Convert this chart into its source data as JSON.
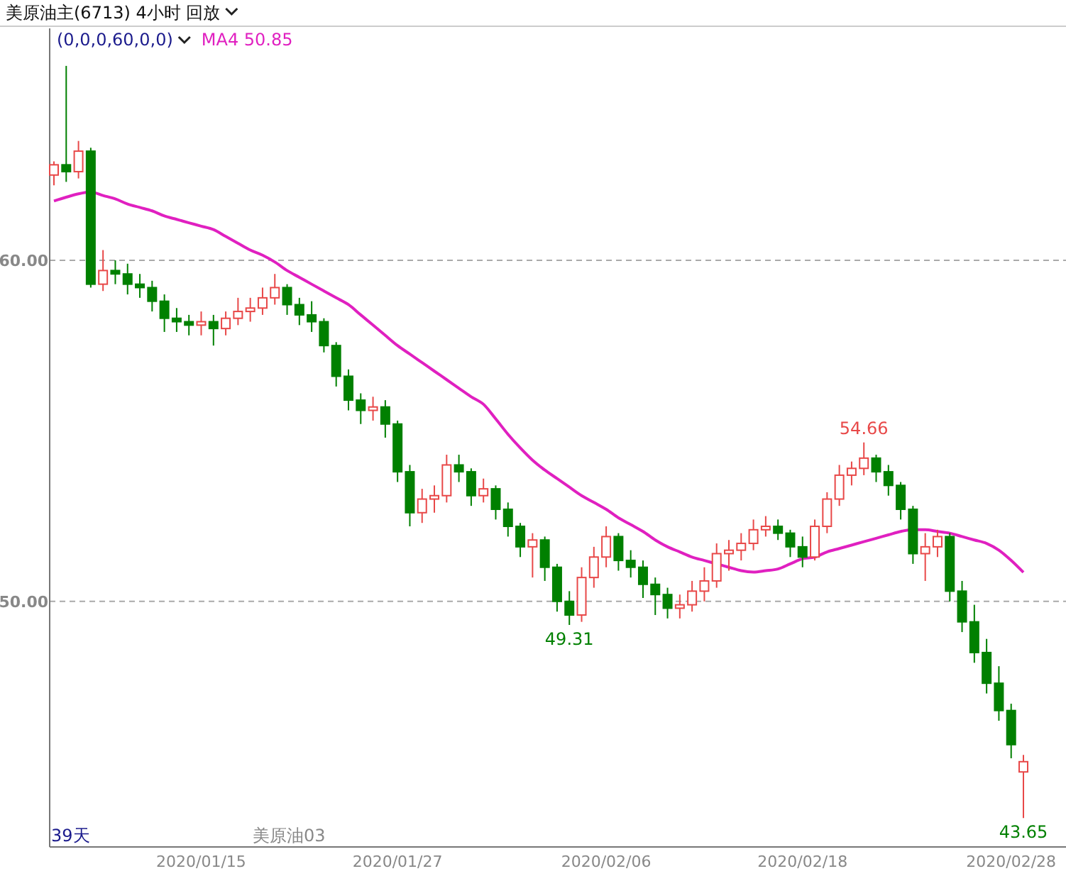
{
  "chart_data": {
    "type": "candlestick",
    "title": "美原油主(6713)  4小时  回放",
    "subtitle": "(0,0,0,60,0,0)",
    "categories": [
      null,
      null,
      null,
      null,
      null,
      null,
      null,
      null,
      null,
      null,
      null,
      null,
      "2020/01/15",
      null,
      null,
      null,
      null,
      null,
      null,
      null,
      null,
      null,
      null,
      null,
      null,
      null,
      null,
      null,
      "2020/01/27",
      null,
      null,
      null,
      null,
      null,
      null,
      null,
      null,
      null,
      null,
      null,
      null,
      null,
      null,
      null,
      null,
      "2020/02/06",
      null,
      null,
      null,
      null,
      null,
      null,
      null,
      null,
      null,
      null,
      null,
      null,
      null,
      null,
      null,
      "2020/02/18",
      null,
      null,
      null,
      null,
      null,
      null,
      null,
      null,
      null,
      null,
      null,
      null,
      null,
      null,
      null,
      null,
      "2020/02/28",
      null
    ],
    "ohlc": [
      [
        62.5,
        62.9,
        62.2,
        62.8
      ],
      [
        62.8,
        65.7,
        62.3,
        62.6
      ],
      [
        62.6,
        63.5,
        62.4,
        63.2
      ],
      [
        63.2,
        63.3,
        59.2,
        59.3
      ],
      [
        59.3,
        60.3,
        59.1,
        59.7
      ],
      [
        59.7,
        60.0,
        59.3,
        59.6
      ],
      [
        59.6,
        59.9,
        59.0,
        59.3
      ],
      [
        59.3,
        59.6,
        58.9,
        59.2
      ],
      [
        59.2,
        59.4,
        58.5,
        58.8
      ],
      [
        58.8,
        59.0,
        57.9,
        58.3
      ],
      [
        58.3,
        58.6,
        57.9,
        58.2
      ],
      [
        58.2,
        58.4,
        57.8,
        58.1
      ],
      [
        58.1,
        58.5,
        57.8,
        58.2
      ],
      [
        58.2,
        58.4,
        57.5,
        58.0
      ],
      [
        58.0,
        58.5,
        57.8,
        58.3
      ],
      [
        58.3,
        58.9,
        58.1,
        58.5
      ],
      [
        58.5,
        58.9,
        58.2,
        58.6
      ],
      [
        58.6,
        59.2,
        58.4,
        58.9
      ],
      [
        58.9,
        59.6,
        58.7,
        59.2
      ],
      [
        59.2,
        59.3,
        58.4,
        58.7
      ],
      [
        58.7,
        58.9,
        58.1,
        58.4
      ],
      [
        58.4,
        58.8,
        57.9,
        58.2
      ],
      [
        58.2,
        58.3,
        57.3,
        57.5
      ],
      [
        57.5,
        57.6,
        56.3,
        56.6
      ],
      [
        56.6,
        56.8,
        55.6,
        55.9
      ],
      [
        55.9,
        56.1,
        55.2,
        55.6
      ],
      [
        55.6,
        56.0,
        55.3,
        55.7
      ],
      [
        55.7,
        55.9,
        54.8,
        55.2
      ],
      [
        55.2,
        55.3,
        53.5,
        53.8
      ],
      [
        53.8,
        54.0,
        52.2,
        52.6
      ],
      [
        52.6,
        53.3,
        52.3,
        53.0
      ],
      [
        53.0,
        53.4,
        52.6,
        53.1
      ],
      [
        53.1,
        54.3,
        52.9,
        54.0
      ],
      [
        54.0,
        54.3,
        53.5,
        53.8
      ],
      [
        53.8,
        53.9,
        52.8,
        53.1
      ],
      [
        53.1,
        53.6,
        52.9,
        53.3
      ],
      [
        53.3,
        53.4,
        52.4,
        52.7
      ],
      [
        52.7,
        52.9,
        51.9,
        52.2
      ],
      [
        52.2,
        52.3,
        51.3,
        51.6
      ],
      [
        51.6,
        52.0,
        50.7,
        51.8
      ],
      [
        51.8,
        51.9,
        50.6,
        51.0
      ],
      [
        51.0,
        51.1,
        49.7,
        50.0
      ],
      [
        50.0,
        50.3,
        49.31,
        49.6
      ],
      [
        49.6,
        51.0,
        49.4,
        50.7
      ],
      [
        50.7,
        51.6,
        50.4,
        51.3
      ],
      [
        51.3,
        52.2,
        51.0,
        51.9
      ],
      [
        51.9,
        52.0,
        50.9,
        51.2
      ],
      [
        51.2,
        51.5,
        50.7,
        51.0
      ],
      [
        51.0,
        51.2,
        50.1,
        50.5
      ],
      [
        50.5,
        50.7,
        49.6,
        50.2
      ],
      [
        50.2,
        50.4,
        49.5,
        49.8
      ],
      [
        49.8,
        50.2,
        49.5,
        49.9
      ],
      [
        49.9,
        50.6,
        49.7,
        50.3
      ],
      [
        50.3,
        51.0,
        50.0,
        50.6
      ],
      [
        50.6,
        51.7,
        50.4,
        51.4
      ],
      [
        51.4,
        51.8,
        50.9,
        51.5
      ],
      [
        51.5,
        52.0,
        51.2,
        51.7
      ],
      [
        51.7,
        52.4,
        51.5,
        52.1
      ],
      [
        52.1,
        52.5,
        51.9,
        52.2
      ],
      [
        52.2,
        52.4,
        51.8,
        52.0
      ],
      [
        52.0,
        52.1,
        51.3,
        51.6
      ],
      [
        51.6,
        51.9,
        51.0,
        51.3
      ],
      [
        51.3,
        52.4,
        51.2,
        52.2
      ],
      [
        52.2,
        53.2,
        52.0,
        53.0
      ],
      [
        53.0,
        54.0,
        52.8,
        53.7
      ],
      [
        53.7,
        54.1,
        53.4,
        53.9
      ],
      [
        53.9,
        54.66,
        53.7,
        54.2
      ],
      [
        54.2,
        54.3,
        53.5,
        53.8
      ],
      [
        53.8,
        54.0,
        53.1,
        53.4
      ],
      [
        53.4,
        53.5,
        52.4,
        52.7
      ],
      [
        52.7,
        52.8,
        51.1,
        51.4
      ],
      [
        51.4,
        52.0,
        50.6,
        51.6
      ],
      [
        51.6,
        52.1,
        51.3,
        51.9
      ],
      [
        51.9,
        52.0,
        50.0,
        50.3
      ],
      [
        50.3,
        50.6,
        49.1,
        49.4
      ],
      [
        49.4,
        49.9,
        48.2,
        48.5
      ],
      [
        48.5,
        48.9,
        47.3,
        47.6
      ],
      [
        47.6,
        48.1,
        46.5,
        46.8
      ],
      [
        46.8,
        47.0,
        45.4,
        45.8
      ],
      [
        45.0,
        45.5,
        43.65,
        45.3
      ]
    ],
    "series": [
      {
        "name": "MA4 50.85",
        "type": "line",
        "color": "#e020c0",
        "values": [
          61.74,
          61.85,
          61.95,
          62.0,
          61.9,
          61.8,
          61.65,
          61.55,
          61.45,
          61.3,
          61.2,
          61.1,
          61.0,
          60.9,
          60.7,
          60.5,
          60.3,
          60.15,
          59.95,
          59.7,
          59.5,
          59.3,
          59.1,
          58.9,
          58.7,
          58.4,
          58.1,
          57.8,
          57.5,
          57.25,
          57.0,
          56.75,
          56.5,
          56.25,
          56.0,
          55.78,
          55.35,
          54.9,
          54.5,
          54.14,
          53.85,
          53.6,
          53.35,
          53.1,
          52.9,
          52.7,
          52.45,
          52.25,
          52.05,
          51.8,
          51.6,
          51.45,
          51.3,
          51.2,
          51.1,
          51.0,
          50.9,
          50.86,
          50.9,
          50.95,
          51.1,
          51.25,
          51.3,
          51.45,
          51.55,
          51.65,
          51.75,
          51.85,
          51.95,
          52.05,
          52.1,
          52.1,
          52.05,
          52.0,
          51.9,
          51.8,
          51.7,
          51.5,
          51.2,
          50.85
        ]
      }
    ],
    "ylim": [
      42.8,
      66.8
    ],
    "yticks": [
      {
        "value": 50,
        "label": "50.00"
      },
      {
        "value": 60,
        "label": "60.00"
      }
    ],
    "grid": "y",
    "annotations": [
      "39天",
      "美原油03",
      {
        "text": "54.66",
        "y": 54.66
      },
      {
        "text": "49.31",
        "y": 49.31
      },
      {
        "text": "43.65",
        "y": 43.65
      }
    ]
  }
}
